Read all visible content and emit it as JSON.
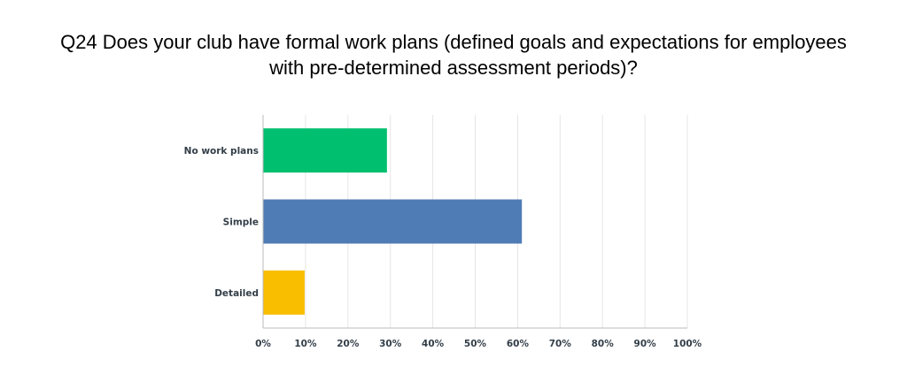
{
  "title": {
    "line1": "Q24 Does your club have formal work plans (defined goals and expectations for employees",
    "line2": "with pre-determined assessment periods)?"
  },
  "colors": {
    "no_work_plans": "#00bf6f",
    "simple": "#507cb6",
    "detailed": "#f9be00",
    "grid": "#e6e6e6",
    "axis": "#bbbbbb",
    "label": "#333e48"
  },
  "chart_data": {
    "type": "bar",
    "orientation": "horizontal",
    "title": "Q24 Does your club have formal work plans (defined goals and expectations for employees with pre-determined assessment periods)?",
    "categories": [
      "No work plans",
      "Simple",
      "Detailed"
    ],
    "values": [
      29.2,
      61.0,
      9.8
    ],
    "unit": "%",
    "xlim": [
      0,
      100
    ],
    "xticks": [
      "0%",
      "10%",
      "20%",
      "30%",
      "40%",
      "50%",
      "60%",
      "70%",
      "80%",
      "90%",
      "100%"
    ],
    "grid": true,
    "legend": "none"
  }
}
